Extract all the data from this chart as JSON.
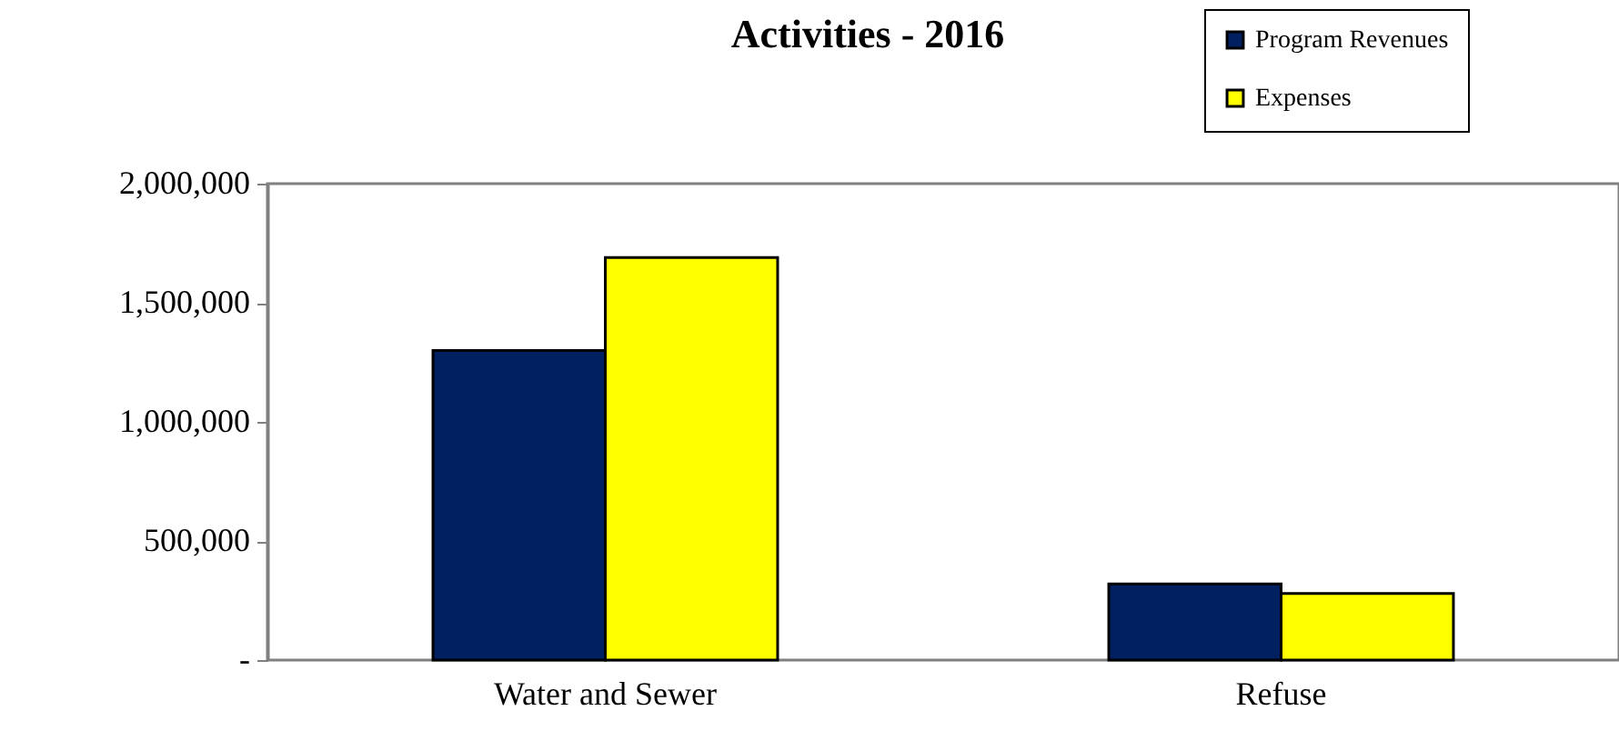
{
  "chart_data": {
    "type": "bar",
    "title": "Activities - 2016",
    "categories": [
      "Water and Sewer",
      "Refuse"
    ],
    "series": [
      {
        "name": "Program Revenues",
        "color": "#002060",
        "values": [
          1300000,
          320000
        ]
      },
      {
        "name": "Expenses",
        "color": "#ffff00",
        "values": [
          1690000,
          280000
        ]
      }
    ],
    "ylim": [
      0,
      2000000
    ],
    "yticks": [
      {
        "value": 0,
        "label": "-"
      },
      {
        "value": 500000,
        "label": "500,000"
      },
      {
        "value": 1000000,
        "label": "1,000,000"
      },
      {
        "value": 1500000,
        "label": "1,500,000"
      },
      {
        "value": 2000000,
        "label": "2,000,000"
      }
    ],
    "grid": false,
    "legend": "top right"
  }
}
